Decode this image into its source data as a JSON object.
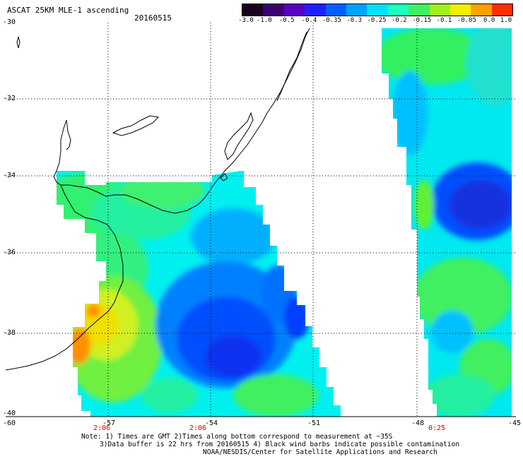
{
  "header": {
    "title": "ASCAT 25KM MLE-1 ascending",
    "date": "20160515"
  },
  "colorbar": {
    "labels": [
      "-3.0",
      "-1.0",
      "-0.5",
      "-0.4",
      "-0.35",
      "-0.3",
      "-0.25",
      "-0.2",
      "-0.15",
      "-0.1",
      "-0.05",
      "0.0",
      "1.0"
    ],
    "colors": [
      "#1a0020",
      "#3a0070",
      "#5a00c0",
      "#2020ff",
      "#0060ff",
      "#00a0ff",
      "#00e0ff",
      "#20ffc0",
      "#40f060",
      "#a0f020",
      "#f0f000",
      "#ffa000",
      "#ff3000"
    ]
  },
  "axes": {
    "lat_labels": [
      "-30",
      "-32",
      "-34",
      "-36",
      "-38",
      "-40"
    ],
    "lon_labels": [
      "-60",
      "-57",
      "-54",
      "-51",
      "-48",
      "-45"
    ]
  },
  "pass_times": [
    "2:06",
    "2:06",
    "0:25"
  ],
  "notes": {
    "line1": "Note: 1) Times are GMT 2)Times along bottom correspond to measurement at ~35S",
    "line2": "3)Data buffer is 22 hrs from 20160515 4) Black wind barbs indicate possible contamination",
    "line3": "NOAA/NESDIS/Center for Satellite Applications and Research"
  }
}
